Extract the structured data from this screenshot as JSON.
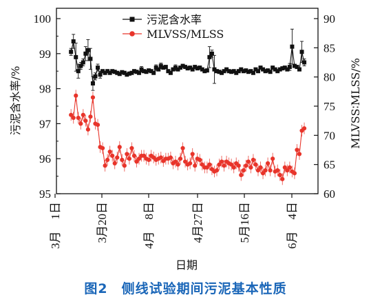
{
  "chart_data": {
    "type": "line",
    "caption": "图2　侧线试验期间污泥基本性质",
    "xlabel": "日期",
    "x_tick_labels": [
      "3月　1日",
      "3月20日",
      "4月　8日",
      "4月27日",
      "5月16日",
      "6月　4日"
    ],
    "ylabel_left": "污泥含水率/%",
    "ylabel_right": "MLVSS∶MLSS/%",
    "ylim_left": [
      95,
      100
    ],
    "ylim_right": [
      60,
      90
    ],
    "yticks_left": [
      95,
      96,
      97,
      98,
      99,
      100
    ],
    "yticks_right": [
      60,
      65,
      70,
      75,
      80,
      85,
      90
    ],
    "legend_position": "top-center",
    "colors": {
      "moisture": "#111111",
      "ratio": "#e8342a"
    },
    "series": [
      {
        "name": "污泥含水率",
        "axis": "left",
        "marker": "square",
        "x": [
          3.12,
          3.14,
          3.16,
          3.18,
          3.2,
          3.22,
          3.24,
          3.26,
          3.28,
          3.3,
          3.32,
          3.34,
          3.36,
          3.38,
          3.4,
          3.42,
          3.44,
          3.46,
          3.48,
          3.5,
          3.52,
          3.54,
          3.56,
          3.58,
          3.6,
          3.62,
          3.64,
          3.66,
          3.68,
          3.7,
          3.72,
          3.74,
          3.76,
          3.78,
          3.8,
          3.82,
          3.84,
          3.86,
          3.88,
          3.9,
          3.92,
          3.94,
          3.96,
          3.98,
          4.0,
          4.02,
          4.04,
          4.06,
          4.08,
          4.1,
          4.12,
          4.14,
          4.16,
          4.18,
          4.2,
          4.22,
          4.24,
          4.26,
          4.28,
          4.3,
          4.32,
          4.34,
          4.36,
          4.38,
          4.4,
          4.42,
          4.44,
          4.46,
          4.48,
          4.5,
          4.52,
          4.54,
          4.56,
          4.58,
          4.6,
          4.62,
          4.64,
          4.66,
          4.68,
          4.7,
          4.72,
          4.74,
          4.76,
          4.78,
          4.8,
          4.82,
          4.84,
          4.86,
          4.88,
          4.9,
          4.92,
          4.94,
          4.96,
          4.98,
          5.0,
          5.02,
          5.04
        ],
        "y": [
          99.05,
          99.35,
          98.9,
          98.5,
          98.65,
          98.75,
          99.0,
          99.1,
          98.85,
          98.15,
          98.35,
          98.6,
          98.4,
          98.5,
          98.45,
          98.5,
          98.45,
          98.5,
          98.48,
          98.45,
          98.42,
          98.47,
          98.45,
          98.4,
          98.43,
          98.45,
          98.5,
          98.48,
          98.45,
          98.55,
          98.5,
          98.48,
          98.52,
          98.5,
          98.45,
          98.6,
          98.55,
          98.65,
          98.6,
          98.62,
          98.5,
          98.45,
          98.55,
          98.6,
          98.55,
          98.6,
          98.65,
          98.62,
          98.58,
          98.6,
          98.55,
          98.62,
          98.58,
          98.6,
          98.55,
          98.5,
          98.52,
          98.9,
          99.0,
          98.55,
          98.5,
          98.48,
          98.45,
          98.5,
          98.55,
          98.5,
          98.48,
          98.5,
          98.45,
          98.5,
          98.55,
          98.5,
          98.52,
          98.48,
          98.5,
          98.45,
          98.55,
          98.5,
          98.6,
          98.55,
          98.5,
          98.52,
          98.48,
          98.6,
          98.55,
          98.5,
          98.55,
          98.58,
          98.6,
          98.55,
          98.62,
          99.2,
          98.65,
          98.62,
          98.55,
          99.05,
          98.75
        ],
        "error": [
          0.1,
          0.2,
          0.4,
          0.2,
          0.1,
          0.1,
          0.2,
          0.3,
          0.3,
          0.2,
          0.1,
          0.1,
          0.1,
          0.05,
          0.05,
          0.05,
          0.05,
          0.05,
          0.05,
          0.05,
          0.05,
          0.05,
          0.05,
          0.05,
          0.05,
          0.05,
          0.05,
          0.05,
          0.05,
          0.08,
          0.05,
          0.05,
          0.05,
          0.05,
          0.05,
          0.08,
          0.05,
          0.08,
          0.05,
          0.05,
          0.05,
          0.05,
          0.05,
          0.08,
          0.05,
          0.05,
          0.05,
          0.05,
          0.05,
          0.05,
          0.05,
          0.05,
          0.05,
          0.05,
          0.05,
          0.05,
          0.05,
          0.3,
          0.1,
          0.4,
          0.05,
          0.05,
          0.05,
          0.05,
          0.05,
          0.05,
          0.05,
          0.05,
          0.05,
          0.05,
          0.05,
          0.05,
          0.05,
          0.05,
          0.05,
          0.05,
          0.05,
          0.05,
          0.05,
          0.05,
          0.05,
          0.05,
          0.05,
          0.05,
          0.05,
          0.05,
          0.05,
          0.05,
          0.05,
          0.05,
          0.1,
          0.5,
          0.05,
          0.05,
          0.05,
          0.3,
          0.1
        ]
      },
      {
        "name": "MLVSS/MLSS",
        "axis": "right",
        "marker": "circle",
        "x": [
          3.12,
          3.14,
          3.16,
          3.18,
          3.2,
          3.22,
          3.24,
          3.26,
          3.28,
          3.3,
          3.32,
          3.34,
          3.36,
          3.38,
          3.4,
          3.42,
          3.44,
          3.46,
          3.48,
          3.5,
          3.52,
          3.54,
          3.56,
          3.58,
          3.6,
          3.62,
          3.64,
          3.66,
          3.68,
          3.7,
          3.72,
          3.74,
          3.76,
          3.78,
          3.8,
          3.82,
          3.84,
          3.86,
          3.88,
          3.9,
          3.92,
          3.94,
          3.96,
          3.98,
          4.0,
          4.02,
          4.04,
          4.06,
          4.08,
          4.1,
          4.12,
          4.14,
          4.16,
          4.18,
          4.2,
          4.22,
          4.24,
          4.26,
          4.28,
          4.3,
          4.32,
          4.34,
          4.36,
          4.38,
          4.4,
          4.42,
          4.44,
          4.46,
          4.48,
          4.5,
          4.52,
          4.54,
          4.56,
          4.58,
          4.6,
          4.62,
          4.64,
          4.66,
          4.68,
          4.7,
          4.72,
          4.74,
          4.76,
          4.78,
          4.8,
          4.82,
          4.84,
          4.86,
          4.88,
          4.9,
          4.92,
          4.94,
          4.96,
          4.98,
          5.0,
          5.02,
          5.04
        ],
        "y": [
          73.5,
          73.0,
          76.8,
          73.0,
          72.0,
          73.5,
          72.5,
          71.0,
          73.2,
          76.5,
          72.0,
          71.8,
          68.0,
          67.8,
          64.8,
          65.8,
          67.2,
          66.5,
          65.2,
          66.2,
          68.0,
          65.8,
          64.8,
          66.8,
          66.0,
          67.8,
          66.5,
          65.5,
          66.0,
          66.5,
          66.5,
          66.0,
          65.8,
          66.5,
          66.2,
          65.8,
          66.0,
          66.2,
          65.6,
          66.0,
          66.0,
          66.2,
          65.2,
          65.5,
          65.0,
          66.0,
          67.8,
          65.5,
          65.0,
          65.2,
          66.8,
          64.8,
          66.0,
          65.8,
          65.0,
          64.5,
          64.5,
          65.0,
          64.2,
          63.8,
          64.0,
          65.0,
          65.5,
          64.8,
          65.5,
          65.2,
          65.0,
          64.5,
          65.2,
          64.8,
          63.2,
          64.0,
          64.8,
          65.5,
          64.5,
          65.8,
          65.0,
          64.0,
          64.5,
          63.5,
          64.0,
          65.2,
          64.0,
          66.0,
          63.8,
          64.0,
          63.2,
          62.5,
          64.5,
          64.0,
          64.5,
          63.8,
          63.5,
          67.5,
          66.8,
          70.8,
          71.2
        ]
      }
    ]
  }
}
